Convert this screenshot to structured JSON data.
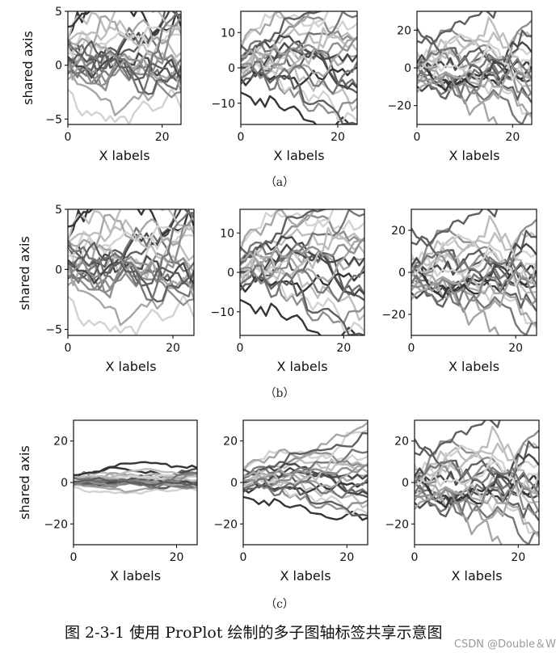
{
  "chart_data": [
    {
      "row": "a",
      "ylabel": "shared axis",
      "subplots": [
        {
          "type": "line",
          "xlabel": "X labels",
          "xlim": [
            0,
            24
          ],
          "ylim": [
            -5.5,
            5
          ],
          "yticks": [
            -5,
            0,
            5
          ],
          "xticks": [
            0,
            20
          ],
          "scale": 1.7,
          "seed": 11
        },
        {
          "type": "line",
          "xlabel": "X labels",
          "xlim": [
            0,
            24
          ],
          "ylim": [
            -16,
            16
          ],
          "yticks": [
            -10,
            0,
            10
          ],
          "xticks": [
            0,
            20
          ],
          "scale": 4.5,
          "seed": 23
        },
        {
          "type": "line",
          "xlabel": "X labels",
          "xlim": [
            0,
            24
          ],
          "ylim": [
            -30,
            30
          ],
          "yticks": [
            -20,
            0,
            20
          ],
          "xticks": [
            0,
            20
          ],
          "scale": 9,
          "seed": 37
        }
      ]
    },
    {
      "row": "b",
      "ylabel": "shared axis",
      "subplots": [
        {
          "type": "line",
          "xlabel": "X labels",
          "xlim": [
            0,
            24
          ],
          "ylim": [
            -5.5,
            5
          ],
          "yticks": [
            -5,
            0,
            5
          ],
          "xticks": [
            0,
            20
          ],
          "scale": 1.7,
          "seed": 11
        },
        {
          "type": "line",
          "xlabel": "X labels",
          "xlim": [
            0,
            24
          ],
          "ylim": [
            -16,
            16
          ],
          "yticks": [
            -10,
            0,
            10
          ],
          "xticks": [
            0,
            20
          ],
          "scale": 4.5,
          "seed": 23
        },
        {
          "type": "line",
          "xlabel": "X labels",
          "xlim": [
            0,
            24
          ],
          "ylim": [
            -30,
            30
          ],
          "yticks": [
            -20,
            0,
            20
          ],
          "xticks": [
            0,
            20
          ],
          "scale": 9,
          "seed": 37
        }
      ]
    },
    {
      "row": "c",
      "ylabel": "shared axis",
      "subplots": [
        {
          "type": "line",
          "xlabel": "X labels",
          "xlim": [
            0,
            24
          ],
          "ylim": [
            -30,
            30
          ],
          "yticks": [
            -20,
            0,
            20
          ],
          "xticks": [
            0,
            20
          ],
          "scale": 1.7,
          "seed": 11
        },
        {
          "type": "line",
          "xlabel": "X labels",
          "xlim": [
            0,
            24
          ],
          "ylim": [
            -30,
            30
          ],
          "yticks": [
            -20,
            0,
            20
          ],
          "xticks": [
            0,
            20
          ],
          "scale": 4.5,
          "seed": 23
        },
        {
          "type": "line",
          "xlabel": "X labels",
          "xlim": [
            0,
            24
          ],
          "ylim": [
            -30,
            30
          ],
          "yticks": [
            -20,
            0,
            20
          ],
          "xticks": [
            0,
            20
          ],
          "scale": 9,
          "seed": 37
        }
      ]
    }
  ],
  "series_style": {
    "count": 22,
    "points": 25,
    "colors": [
      "#d2d2d2",
      "#bdbdbd",
      "#a6a6a6",
      "#8e8e8e",
      "#767676",
      "#5e5e5e",
      "#484848",
      "#353535"
    ]
  },
  "row_labels": [
    "（a）",
    "（b）",
    "（c）"
  ],
  "caption": "图 2-3-1   使用 ProPlot 绘制的多子图轴标签共享示意图",
  "watermark": "CSDN @Double＆W"
}
